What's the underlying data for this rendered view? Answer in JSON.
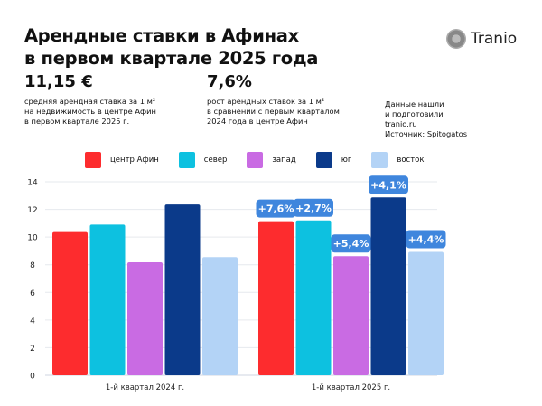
{
  "header": {
    "title_line1": "Арендные ставки в Афинах",
    "title_line2": "в первом квартале 2025 года",
    "logo_text": "Tranio"
  },
  "stats": [
    {
      "value": "11,15 €",
      "desc": [
        "средняя арендная ставка за 1 м²",
        "на недвижимость в центре Афин",
        "в первом квартале 2025 г."
      ]
    },
    {
      "value": "7,6%",
      "desc": [
        "рост арендных ставок за 1 м²",
        "в сравнении с первым кварталом",
        "2024 года в центре Афин"
      ]
    }
  ],
  "source": [
    "Данные нашли",
    "и подготовили",
    "tranio.ru",
    "Источник: Spitogatos"
  ],
  "chart_data": {
    "type": "bar",
    "categories": [
      "1-й квартал 2024 г.",
      "1-й квартал 2025 г."
    ],
    "series": [
      {
        "name": "центр Афин",
        "color": "#fd2c2e",
        "values": [
          10.36,
          11.15
        ],
        "change": "+7,6%"
      },
      {
        "name": "север",
        "color": "#0dc1e0",
        "values": [
          10.9,
          11.2
        ],
        "change": "+2,7%"
      },
      {
        "name": "запад",
        "color": "#c96be3",
        "values": [
          8.18,
          8.62
        ],
        "change": "+5,4%"
      },
      {
        "name": "юг",
        "color": "#0b3a8a",
        "values": [
          12.36,
          12.87
        ],
        "change": "+4,1%"
      },
      {
        "name": "восток",
        "color": "#b3d3f6",
        "values": [
          8.55,
          8.93
        ],
        "change": "+4,4%"
      }
    ],
    "ylim": [
      0,
      14
    ],
    "yticks": [
      0,
      2,
      4,
      6,
      8,
      10,
      12,
      14
    ],
    "grid": true,
    "legend": "top",
    "label_color": "#3f86dd"
  }
}
